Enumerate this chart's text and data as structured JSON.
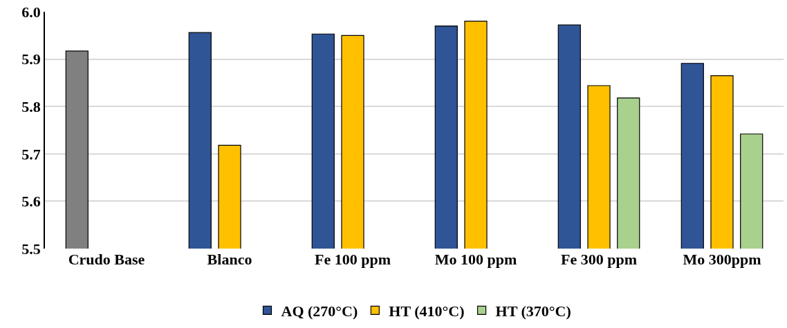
{
  "chart_data": {
    "type": "bar",
    "categories": [
      "Crudo Base",
      "Blanco",
      "Fe 100 ppm",
      "Mo 100 ppm",
      "Fe 300 ppm",
      "Mo 300ppm"
    ],
    "series": [
      {
        "name": "AQ (270°C)",
        "color": "#2f5597",
        "colors": [
          "#808080",
          "#2f5597",
          "#2f5597",
          "#2f5597",
          "#2f5597",
          "#2f5597"
        ],
        "values": [
          5.917,
          5.956,
          5.953,
          5.97,
          5.972,
          5.891
        ]
      },
      {
        "name": "HT (410°C)",
        "color": "#ffc000",
        "values": [
          null,
          5.718,
          5.95,
          5.98,
          5.844,
          5.865
        ]
      },
      {
        "name": "HT (370°C)",
        "color": "#a9d18e",
        "values": [
          null,
          null,
          null,
          null,
          5.818,
          5.742
        ]
      }
    ],
    "ylim": [
      5.5,
      6.0
    ],
    "yticks": [
      5.5,
      5.6,
      5.7,
      5.8,
      5.9,
      {
        "value": 6,
        "label": "6.0"
      }
    ],
    "grid": "y",
    "legend": "bottom"
  }
}
